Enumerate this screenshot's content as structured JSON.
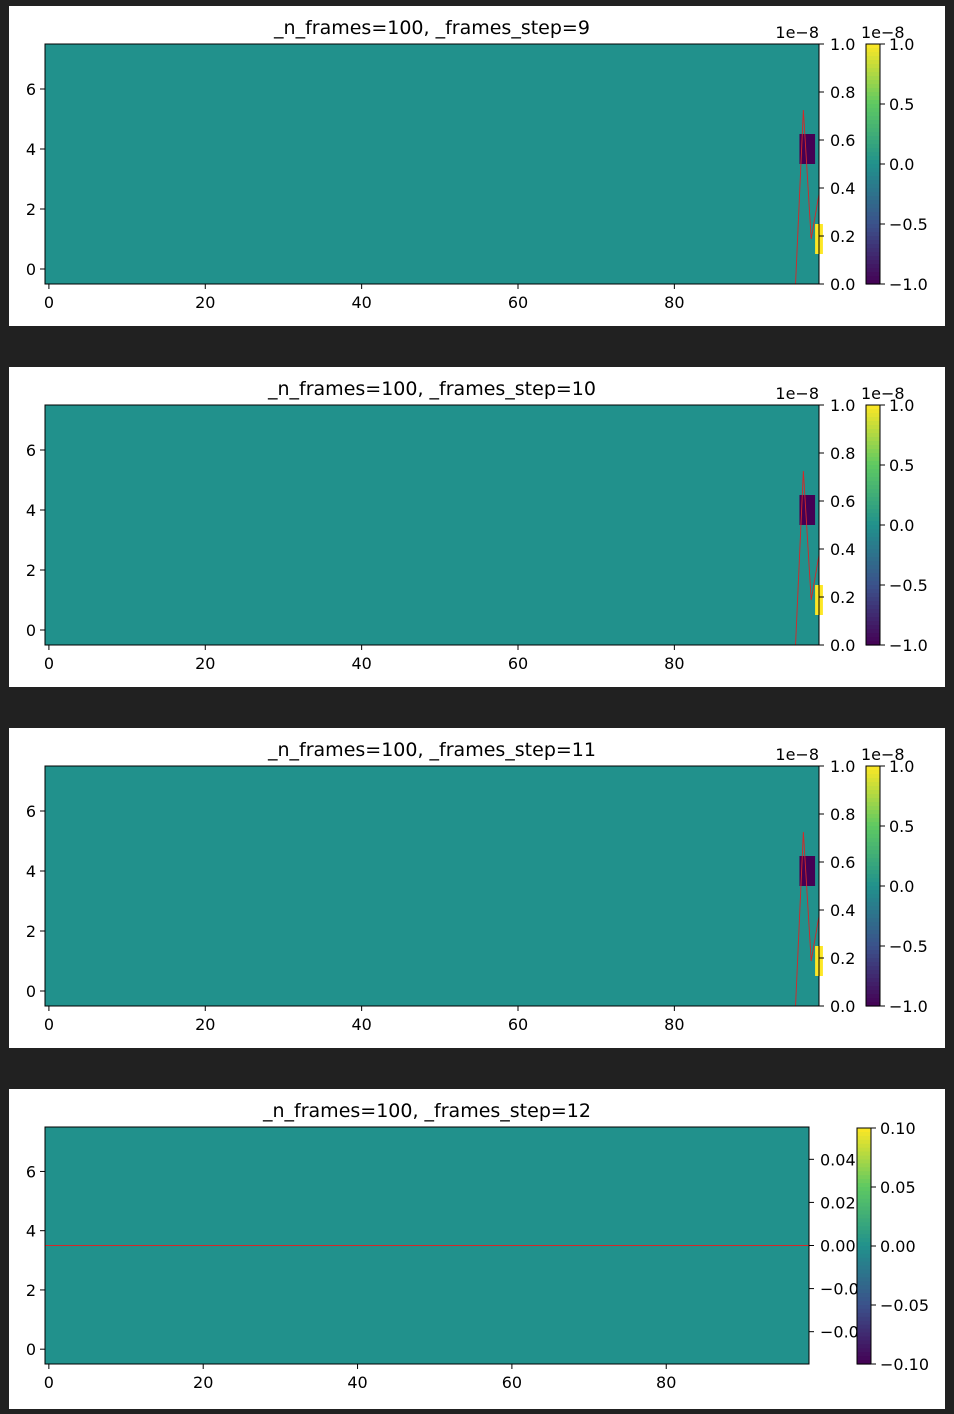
{
  "chart_data": [
    {
      "type": "heatmap",
      "title": "_n_frames=100, _frames_step=9",
      "x_range": [
        -0.5,
        98.5
      ],
      "y_range": [
        -0.5,
        7.5
      ],
      "x_ticks": [
        0,
        20,
        40,
        60,
        80
      ],
      "y_ticks": [
        0,
        2,
        4,
        6
      ],
      "background_value": 0.0,
      "cells": [
        {
          "x": 97,
          "y": 4,
          "w": 2,
          "value": -1.0
        },
        {
          "x": 98.5,
          "y": 1,
          "w": 1,
          "value": 1.0
        }
      ],
      "twin_axis": {
        "ylim": [
          0.0,
          1.0
        ],
        "ticks": [
          0.0,
          0.2,
          0.4,
          0.6,
          0.8,
          1.0
        ],
        "tick_labels": [
          "0.0",
          "0.2",
          "0.4",
          "0.6",
          "0.8",
          "1.0"
        ],
        "offset_label": "1e−8"
      },
      "trace": {
        "color": "#d62728",
        "x": [
          95.5,
          96.5,
          97.5,
          98.5
        ],
        "y": [
          -0.5,
          5.3,
          1.0,
          2.5
        ]
      },
      "colorbar": {
        "ticks": [
          -1.0,
          -0.5,
          0.0,
          0.5,
          1.0
        ],
        "tick_labels": [
          "−1.0",
          "−0.5",
          "0.0",
          "0.5",
          "1.0"
        ],
        "offset_label": "1e−8"
      }
    },
    {
      "type": "heatmap",
      "title": "_n_frames=100, _frames_step=10",
      "x_range": [
        -0.5,
        98.5
      ],
      "y_range": [
        -0.5,
        7.5
      ],
      "x_ticks": [
        0,
        20,
        40,
        60,
        80
      ],
      "y_ticks": [
        0,
        2,
        4,
        6
      ],
      "background_value": 0.0,
      "cells": [
        {
          "x": 97,
          "y": 4,
          "w": 2,
          "value": -1.0
        },
        {
          "x": 98.5,
          "y": 1,
          "w": 1,
          "value": 1.0
        }
      ],
      "twin_axis": {
        "ylim": [
          0.0,
          1.0
        ],
        "ticks": [
          0.0,
          0.2,
          0.4,
          0.6,
          0.8,
          1.0
        ],
        "tick_labels": [
          "0.0",
          "0.2",
          "0.4",
          "0.6",
          "0.8",
          "1.0"
        ],
        "offset_label": "1e−8"
      },
      "trace": {
        "color": "#d62728",
        "x": [
          95.5,
          96.5,
          97.5,
          98.5
        ],
        "y": [
          -0.5,
          5.3,
          1.0,
          2.5
        ]
      },
      "colorbar": {
        "ticks": [
          -1.0,
          -0.5,
          0.0,
          0.5,
          1.0
        ],
        "tick_labels": [
          "−1.0",
          "−0.5",
          "0.0",
          "0.5",
          "1.0"
        ],
        "offset_label": "1e−8"
      }
    },
    {
      "type": "heatmap",
      "title": "_n_frames=100, _frames_step=11",
      "x_range": [
        -0.5,
        98.5
      ],
      "y_range": [
        -0.5,
        7.5
      ],
      "x_ticks": [
        0,
        20,
        40,
        60,
        80
      ],
      "y_ticks": [
        0,
        2,
        4,
        6
      ],
      "background_value": 0.0,
      "cells": [
        {
          "x": 97,
          "y": 4,
          "w": 2,
          "value": -1.0
        },
        {
          "x": 98.5,
          "y": 1,
          "w": 1,
          "value": 1.0
        }
      ],
      "twin_axis": {
        "ylim": [
          0.0,
          1.0
        ],
        "ticks": [
          0.0,
          0.2,
          0.4,
          0.6,
          0.8,
          1.0
        ],
        "tick_labels": [
          "0.0",
          "0.2",
          "0.4",
          "0.6",
          "0.8",
          "1.0"
        ],
        "offset_label": "1e−8"
      },
      "trace": {
        "color": "#d62728",
        "x": [
          95.5,
          96.5,
          97.5,
          98.5
        ],
        "y": [
          -0.5,
          5.3,
          1.0,
          2.5
        ]
      },
      "colorbar": {
        "ticks": [
          -1.0,
          -0.5,
          0.0,
          0.5,
          1.0
        ],
        "tick_labels": [
          "−1.0",
          "−0.5",
          "0.0",
          "0.5",
          "1.0"
        ],
        "offset_label": "1e−8"
      }
    },
    {
      "type": "heatmap",
      "title": "_n_frames=100, _frames_step=12",
      "x_range": [
        -0.5,
        98.5
      ],
      "y_range": [
        -0.5,
        7.5
      ],
      "x_ticks": [
        0,
        20,
        40,
        60,
        80
      ],
      "y_ticks": [
        0,
        2,
        4,
        6
      ],
      "background_value": 0.0,
      "cells": [],
      "twin_axis": {
        "ylim": [
          -0.055,
          0.055
        ],
        "ticks": [
          -0.04,
          -0.02,
          0.0,
          0.02,
          0.04
        ],
        "tick_labels": [
          "−0.04",
          "−0.02",
          "0.00",
          "0.02",
          "0.04"
        ],
        "offset_label": ""
      },
      "trace": {
        "color": "#d62728",
        "x": [
          -0.5,
          98.5
        ],
        "y": [
          3.5,
          3.5
        ]
      },
      "colorbar": {
        "ticks": [
          -0.1,
          -0.05,
          0.0,
          0.05,
          0.1
        ],
        "tick_labels": [
          "−0.10",
          "−0.05",
          "0.00",
          "0.05",
          "0.10"
        ],
        "offset_label": ""
      }
    }
  ],
  "colors": {
    "background": "#212121",
    "panel": "#ffffff",
    "viridis_low": "#440154",
    "viridis_mid": "#21918c",
    "viridis_high": "#fde725",
    "trace": "#d62728"
  }
}
